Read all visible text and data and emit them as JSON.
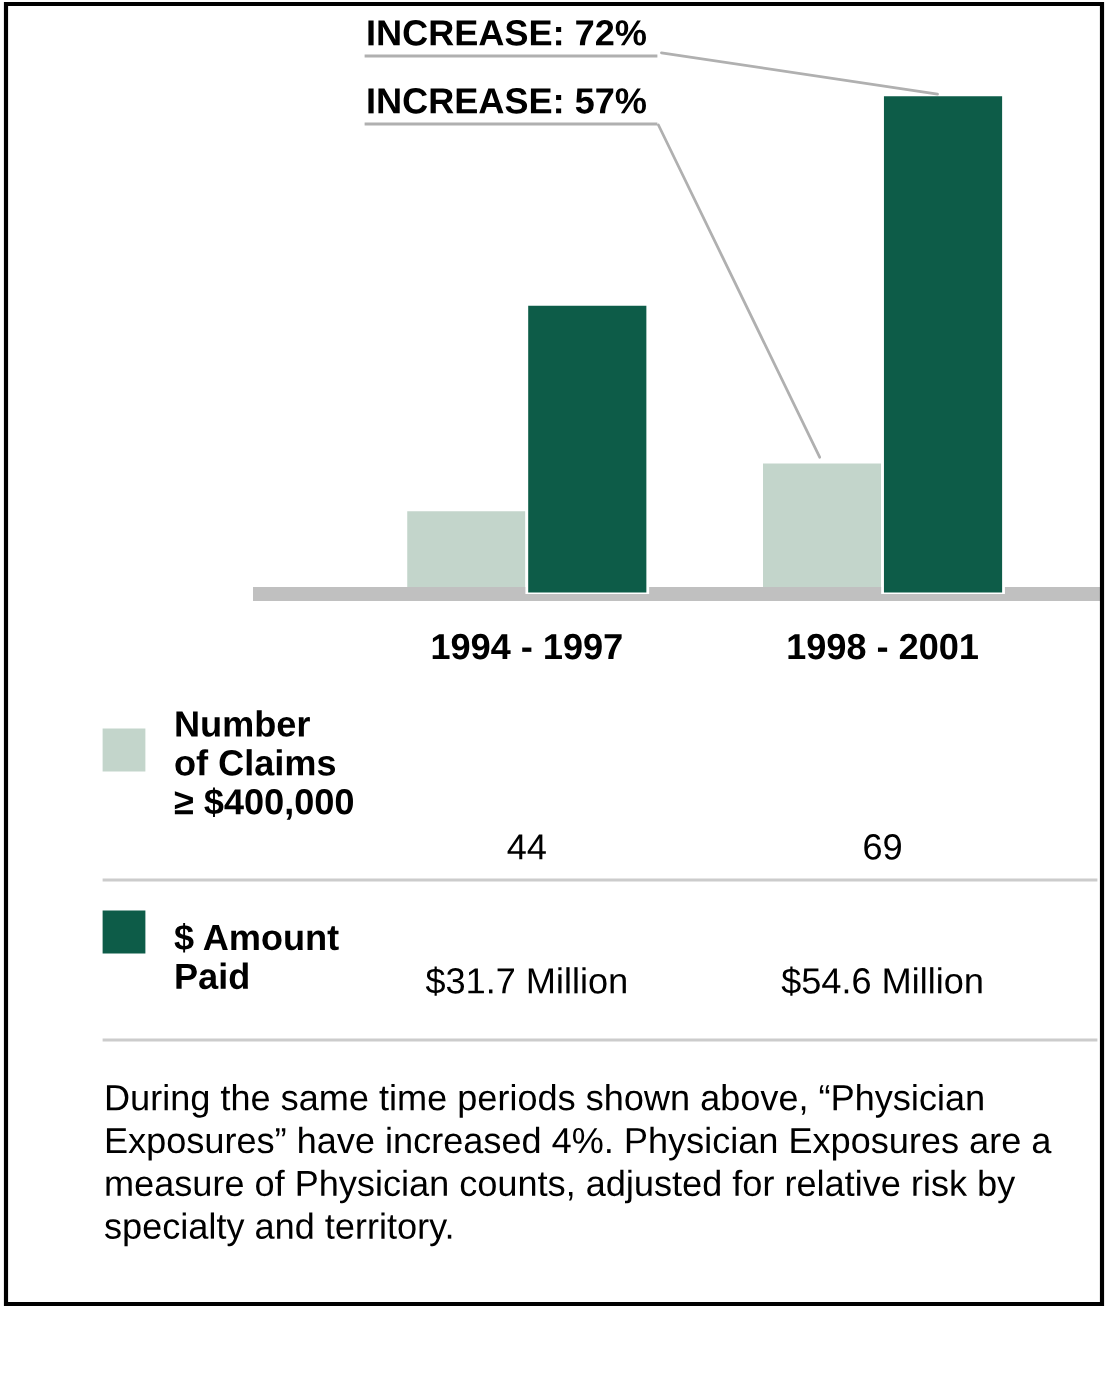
{
  "chart_data": {
    "type": "bar",
    "categories": [
      "1994 - 1997",
      "1998 - 2001"
    ],
    "legend": "bottom left",
    "series": [
      {
        "name": "Number\nof Claims\n≥ $400,000",
        "color": "#c3d5cb",
        "values": [
          44,
          69
        ],
        "value_labels": [
          "44",
          "69"
        ]
      },
      {
        "name": "$ Amount\nPaid",
        "color": "#0d5c48",
        "axis": "y2",
        "values": [
          31.7,
          54.6
        ],
        "value_labels": [
          "$31.7 Million",
          "$54.6 Million"
        ]
      }
    ],
    "annotations": [
      "INCREASE: 72%",
      "INCREASE: 57%",
      "During the same time periods shown above, “Physician Exposures” have increased 4%. Physician Exposures are a measure of Physician counts, adjusted for relative risk by specialty and territory."
    ]
  }
}
